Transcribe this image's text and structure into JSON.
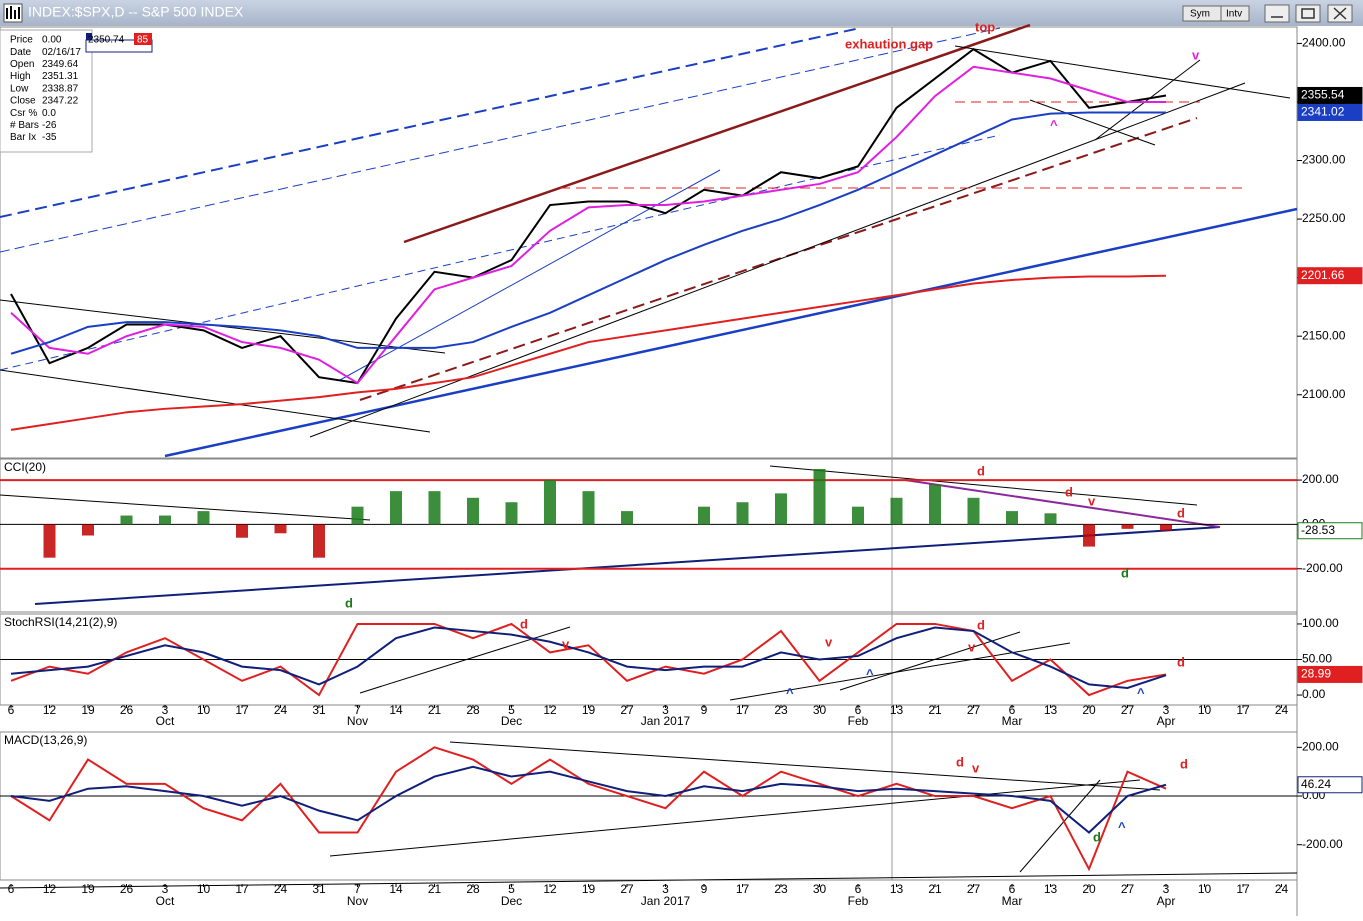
{
  "window": {
    "title": "INDEX:$SPX,D -- S&P 500 INDEX",
    "buttons": [
      "Sym",
      "Intv"
    ]
  },
  "data_window": {
    "rows": [
      [
        "Price",
        "0.00"
      ],
      [
        "Date",
        "02/16/17"
      ],
      [
        "Open",
        "2349.64"
      ],
      [
        "High",
        "2351.31"
      ],
      [
        "Low",
        "2338.87"
      ],
      [
        "Close",
        "2347.22"
      ],
      [
        "Csr %",
        "0.0"
      ],
      [
        "# Bars",
        "-26"
      ],
      [
        "Bar Ix",
        "-35"
      ]
    ],
    "price_box": "2350.74",
    "count_box": "85"
  },
  "chart_data": [
    {
      "type": "line",
      "categories": [
        "6",
        "12",
        "19",
        "26",
        "3",
        "10",
        "17",
        "24",
        "31",
        "7",
        "14",
        "21",
        "28",
        "5",
        "12",
        "19",
        "27",
        "3",
        "9",
        "17",
        "23",
        "30",
        "6",
        "13",
        "21",
        "27",
        "6",
        "13",
        "20",
        "27",
        "3",
        "10",
        "17",
        "24"
      ],
      "month_labels": [
        null,
        null,
        null,
        null,
        "Oct",
        null,
        null,
        null,
        null,
        "Nov",
        null,
        null,
        null,
        "Dec",
        null,
        null,
        null,
        "Jan 2017",
        null,
        null,
        null,
        null,
        "Feb",
        null,
        null,
        null,
        "Mar",
        null,
        null,
        null,
        "Apr",
        null,
        null,
        null
      ],
      "series": [
        {
          "color": "#000000",
          "values": [
            2186,
            2127,
            2140,
            2160,
            2160,
            2155,
            2140,
            2150,
            2115,
            2110,
            2165,
            2205,
            2200,
            2215,
            2262,
            2265,
            2265,
            2255,
            2275,
            2270,
            2290,
            2285,
            2295,
            2345,
            2370,
            2395,
            2375,
            2385,
            2345,
            2350,
            2355.54,
            null,
            null,
            null
          ],
          "label_box": true
        },
        {
          "color": "#e020e0",
          "values": [
            2170,
            2140,
            2135,
            2150,
            2160,
            2158,
            2145,
            2140,
            2130,
            2110,
            2150,
            2190,
            2200,
            2210,
            2240,
            2260,
            2262,
            2262,
            2265,
            2270,
            2275,
            2280,
            2290,
            2320,
            2355,
            2380,
            2375,
            2370,
            2360,
            2350,
            2350,
            null,
            null,
            null
          ]
        },
        {
          "color": "#1a3fc4",
          "values": [
            2135,
            2145,
            2158,
            2162,
            2162,
            2160,
            2158,
            2155,
            2150,
            2140,
            2140,
            2140,
            2145,
            2158,
            2170,
            2185,
            2200,
            2215,
            2228,
            2240,
            2250,
            2262,
            2275,
            2290,
            2305,
            2320,
            2335,
            2340,
            2341,
            2341,
            2341.02,
            null,
            null,
            null
          ],
          "label_box": true
        },
        {
          "color": "#e02020",
          "values": [
            2070,
            2075,
            2080,
            2085,
            2088,
            2090,
            2092,
            2095,
            2098,
            2102,
            2105,
            2110,
            2115,
            2125,
            2135,
            2145,
            2150,
            2155,
            2160,
            2165,
            2170,
            2175,
            2180,
            2185,
            2190,
            2195,
            2198,
            2200,
            2201,
            2201,
            2201.66,
            null,
            null,
            null
          ],
          "label_box": true
        }
      ],
      "ylim": [
        2046,
        2414
      ],
      "yticks": [
        {
          "value": 2100,
          "label": "2100.00"
        },
        {
          "value": 2150,
          "label": "2150.00"
        },
        {
          "value": 2200,
          "label": "2200.00"
        },
        {
          "value": 2250,
          "label": "2250.00"
        },
        {
          "value": 2300,
          "label": "2300.00"
        },
        {
          "value": 2350,
          "label": "2350.00"
        },
        {
          "value": 2400,
          "label": "2400.00"
        }
      ],
      "annotations": [
        "exhaution gap",
        "top",
        "v",
        "^"
      ]
    },
    {
      "type": "bar",
      "title": "CCI(20)",
      "series": [
        {
          "color": "#1a7a1a",
          "negative_color": "#c00000",
          "values": [
            0,
            -150,
            -50,
            40,
            40,
            60,
            -60,
            -40,
            -150,
            80,
            150,
            150,
            120,
            100,
            200,
            150,
            60,
            0,
            80,
            100,
            140,
            250,
            80,
            120,
            180,
            120,
            60,
            50,
            -100,
            -20,
            -28.53,
            null,
            null,
            null
          ],
          "label_box": true
        }
      ],
      "ylim": [
        -395,
        295
      ],
      "yticks": [
        {
          "value": 200,
          "label": "200.00"
        },
        {
          "value": 0,
          "label": "0.00"
        },
        {
          "value": -200,
          "label": "-200.00"
        }
      ],
      "annotations": [
        "d",
        "d",
        "v",
        "d",
        "d",
        "d"
      ]
    },
    {
      "type": "line",
      "title": "StochRSI(14,21(2),9)",
      "series": [
        {
          "color": "#e02020",
          "values": [
            20,
            40,
            30,
            60,
            80,
            50,
            20,
            40,
            0,
            100,
            100,
            100,
            80,
            100,
            60,
            70,
            20,
            40,
            30,
            50,
            90,
            20,
            60,
            100,
            100,
            90,
            20,
            50,
            0,
            20,
            28.99,
            null,
            null,
            null
          ],
          "label_box": true
        },
        {
          "color": "#10207a",
          "values": [
            30,
            35,
            40,
            55,
            70,
            60,
            40,
            35,
            15,
            40,
            80,
            95,
            90,
            85,
            75,
            60,
            40,
            35,
            40,
            40,
            60,
            50,
            55,
            80,
            95,
            90,
            60,
            40,
            15,
            10,
            28,
            null,
            null,
            null
          ]
        }
      ],
      "ylim": [
        -14,
        114
      ],
      "yticks": [
        {
          "value": 100,
          "label": "100.00"
        },
        {
          "value": 50,
          "label": "50.00"
        },
        {
          "value": 0,
          "label": "0.00"
        }
      ],
      "annotations": [
        "d",
        "v",
        "v",
        "d",
        "v",
        "d",
        "^",
        "^",
        "^"
      ]
    },
    {
      "type": "line",
      "title": "MACD(13,26,9)",
      "series": [
        {
          "color": "#e02020",
          "values": [
            0,
            -100,
            150,
            50,
            50,
            -50,
            -100,
            50,
            -150,
            -150,
            100,
            200,
            150,
            50,
            150,
            50,
            0,
            -50,
            100,
            0,
            100,
            50,
            0,
            50,
            0,
            0,
            -50,
            0,
            -300,
            100,
            30,
            null,
            null,
            null
          ]
        },
        {
          "color": "#10207a",
          "values": [
            0,
            -20,
            30,
            40,
            20,
            0,
            -40,
            0,
            -60,
            -100,
            0,
            80,
            120,
            80,
            100,
            60,
            20,
            0,
            40,
            20,
            50,
            40,
            20,
            30,
            20,
            10,
            0,
            -20,
            -150,
            0,
            46.24,
            null,
            null,
            null
          ],
          "label_box": true
        }
      ],
      "ylim": [
        -345,
        263
      ],
      "yticks": [
        {
          "value": 200,
          "label": "200.00"
        },
        {
          "value": 0,
          "label": "0.00"
        },
        {
          "value": -200,
          "label": "-200.00"
        }
      ],
      "annotations": [
        "d",
        "v",
        "d",
        "d",
        "^"
      ]
    }
  ]
}
